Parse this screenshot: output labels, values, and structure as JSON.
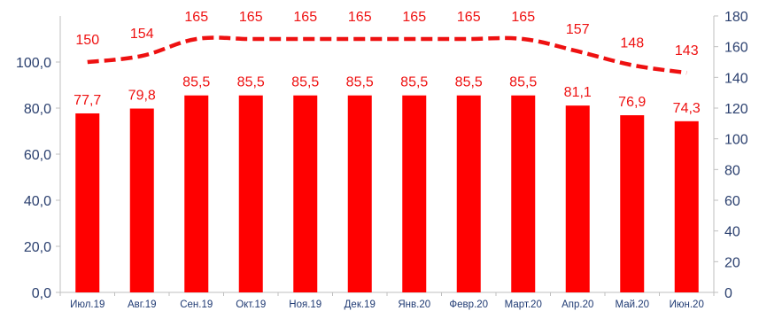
{
  "chart_data": {
    "type": "bar",
    "categories": [
      "Июл.19",
      "Авг.19",
      "Сен.19",
      "Окт.19",
      "Ноя.19",
      "Дек.19",
      "Янв.20",
      "Февр.20",
      "Март.20",
      "Апр.20",
      "Май.20",
      "Июн.20"
    ],
    "series": [
      {
        "type": "bar",
        "axis": "left",
        "color": "#ff0000",
        "values": [
          77.7,
          79.8,
          85.5,
          85.5,
          85.5,
          85.5,
          85.5,
          85.5,
          85.5,
          81.1,
          76.9,
          74.3
        ],
        "labels": [
          "77,7",
          "79,8",
          "85,5",
          "85,5",
          "85,5",
          "85,5",
          "85,5",
          "85,5",
          "85,5",
          "81,1",
          "76,9",
          "74,3"
        ]
      },
      {
        "type": "line",
        "axis": "right",
        "style": "dashed",
        "color": "#ee1111",
        "values": [
          150,
          154,
          165,
          165,
          165,
          165,
          165,
          165,
          165,
          157,
          148,
          143
        ],
        "labels": [
          "150",
          "154",
          "165",
          "165",
          "165",
          "165",
          "165",
          "165",
          "165",
          "157",
          "148",
          "143"
        ]
      }
    ],
    "y_left": {
      "ylim": [
        0,
        120
      ],
      "ticks": [
        "0,0",
        "20,0",
        "40,0",
        "60,0",
        "80,0",
        "100,0"
      ],
      "tick_values": [
        0,
        20,
        40,
        60,
        80,
        100
      ]
    },
    "y_right": {
      "ylim": [
        0,
        180
      ],
      "ticks": [
        "0",
        "20",
        "40",
        "60",
        "80",
        "100",
        "120",
        "140",
        "160",
        "180"
      ],
      "tick_values": [
        0,
        20,
        40,
        60,
        80,
        100,
        120,
        140,
        160,
        180
      ]
    },
    "grid": false,
    "legend": "none",
    "title": "",
    "xlabel": "",
    "ylabel": ""
  }
}
